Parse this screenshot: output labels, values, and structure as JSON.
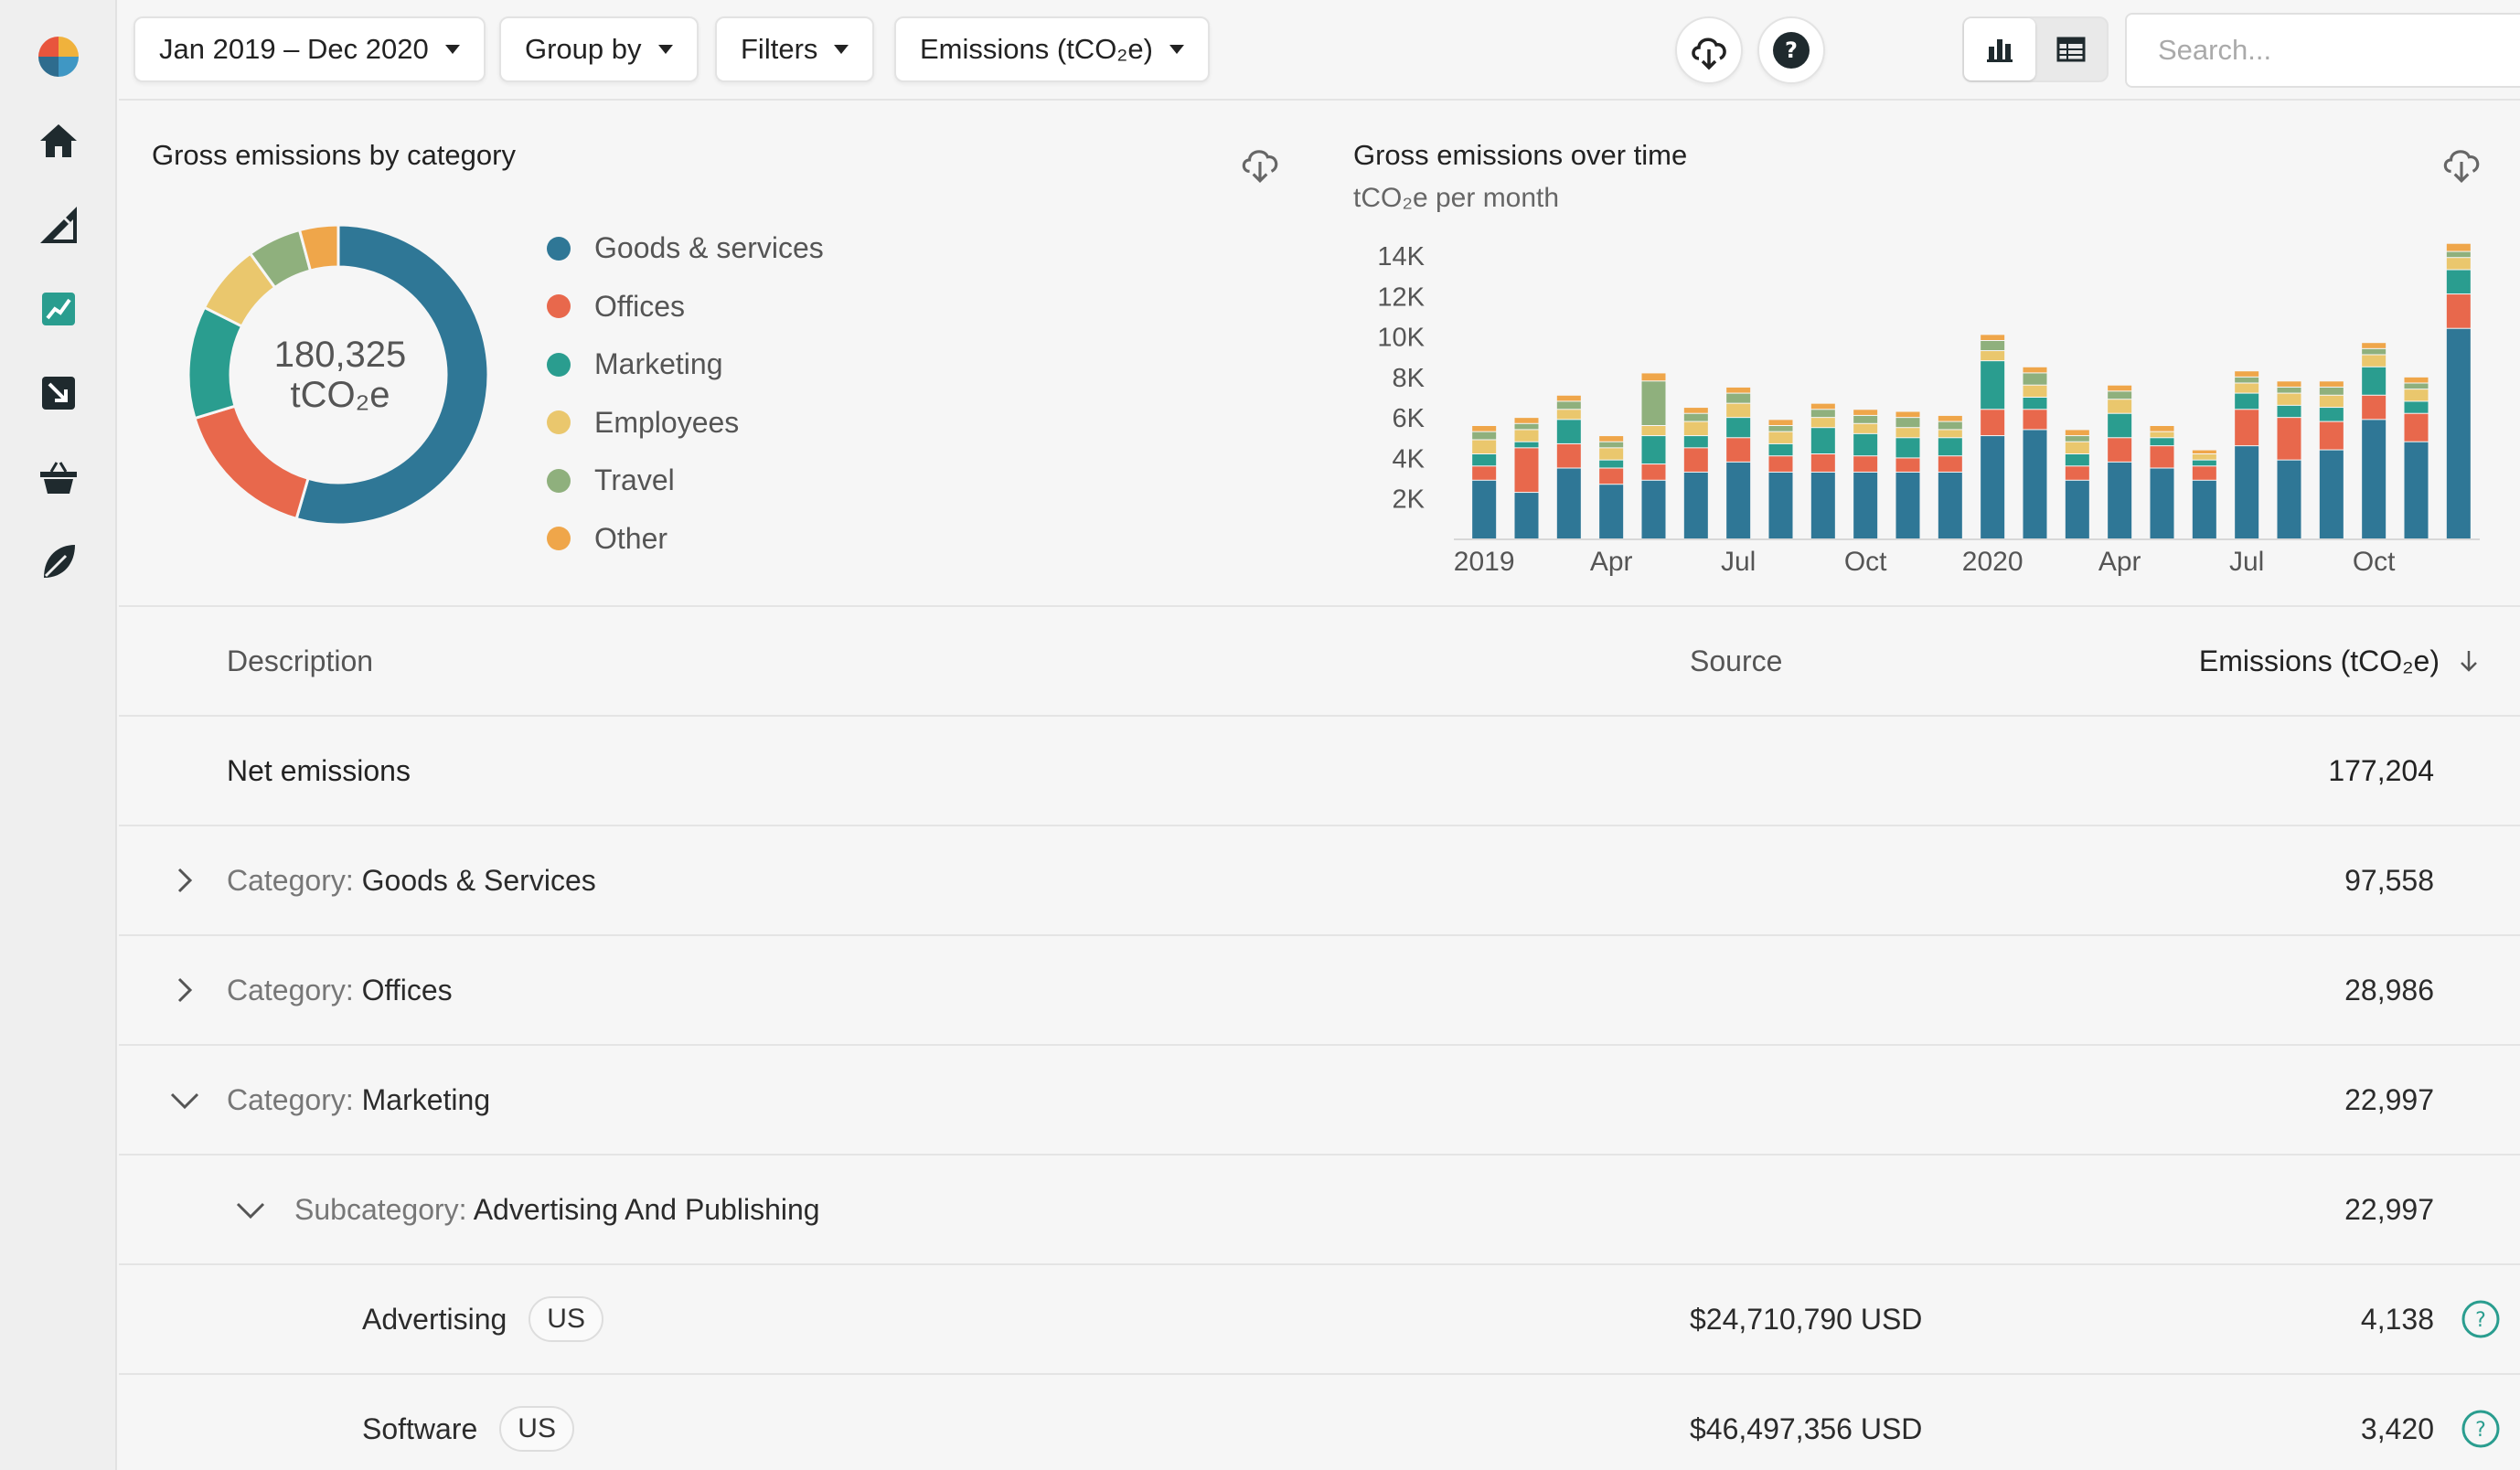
{
  "toolbar": {
    "date_range": "Jan 2019 – Dec 2020",
    "group_by": "Group by",
    "filters": "Filters",
    "metric": "Emissions (tCO₂e)",
    "search_placeholder": "Search..."
  },
  "sidebar": {
    "items": [
      "logo",
      "home",
      "tools",
      "analytics",
      "import",
      "basket",
      "leaf"
    ]
  },
  "donut": {
    "title": "Gross emissions by category",
    "total_value": "180,325",
    "total_unit": "tCO₂e",
    "legend": [
      {
        "label": "Goods & services",
        "color": "#2f7796"
      },
      {
        "label": "Offices",
        "color": "#e8684c"
      },
      {
        "label": "Marketing",
        "color": "#2a9d8f"
      },
      {
        "label": "Employees",
        "color": "#eac76d"
      },
      {
        "label": "Travel",
        "color": "#8fb07d"
      },
      {
        "label": "Other",
        "color": "#efa64a"
      }
    ]
  },
  "chart_data": {
    "type": "bar",
    "stacked": true,
    "title": "Gross emissions over time",
    "subtitle": "tCO₂e per month",
    "xlabel": "",
    "ylabel": "tCO₂e",
    "ylim": [
      0,
      14000
    ],
    "y_ticks": [
      "2K",
      "4K",
      "6K",
      "8K",
      "10K",
      "12K",
      "14K"
    ],
    "x_tick_labels": [
      {
        "index": 0,
        "label": "2019"
      },
      {
        "index": 3,
        "label": "Apr"
      },
      {
        "index": 6,
        "label": "Jul"
      },
      {
        "index": 9,
        "label": "Oct"
      },
      {
        "index": 12,
        "label": "2020"
      },
      {
        "index": 15,
        "label": "Apr"
      },
      {
        "index": 18,
        "label": "Jul"
      },
      {
        "index": 21,
        "label": "Oct"
      }
    ],
    "categories": [
      "Jan 2019",
      "Feb 2019",
      "Mar 2019",
      "Apr 2019",
      "May 2019",
      "Jun 2019",
      "Jul 2019",
      "Aug 2019",
      "Sep 2019",
      "Oct 2019",
      "Nov 2019",
      "Dec 2019",
      "Jan 2020",
      "Feb 2020",
      "Mar 2020",
      "Apr 2020",
      "May 2020",
      "Jun 2020",
      "Jul 2020",
      "Aug 2020",
      "Sep 2020",
      "Oct 2020",
      "Nov 2020",
      "Dec 2020"
    ],
    "series": [
      {
        "name": "Goods & services",
        "color": "#2f7796",
        "values": [
          2900,
          2300,
          3500,
          2700,
          2900,
          3300,
          3800,
          3300,
          3300,
          3300,
          3300,
          3300,
          5100,
          5400,
          2900,
          3800,
          3500,
          2900,
          4600,
          3900,
          4400,
          5900,
          4800,
          10400
        ]
      },
      {
        "name": "Offices",
        "color": "#e8684c",
        "values": [
          700,
          2200,
          1200,
          800,
          800,
          1200,
          1200,
          800,
          900,
          800,
          700,
          800,
          1300,
          1000,
          700,
          1200,
          1100,
          700,
          1800,
          2100,
          1400,
          1200,
          1400,
          1700
        ]
      },
      {
        "name": "Marketing",
        "color": "#2a9d8f",
        "values": [
          600,
          300,
          1200,
          400,
          1400,
          600,
          1000,
          600,
          1300,
          1100,
          1000,
          900,
          2400,
          600,
          600,
          1200,
          400,
          300,
          800,
          600,
          700,
          1400,
          600,
          1200
        ]
      },
      {
        "name": "Employees",
        "color": "#eac76d",
        "values": [
          700,
          600,
          500,
          600,
          500,
          700,
          700,
          600,
          500,
          500,
          500,
          400,
          500,
          600,
          600,
          700,
          300,
          300,
          500,
          600,
          600,
          600,
          600,
          600
        ]
      },
      {
        "name": "Travel",
        "color": "#8fb07d",
        "values": [
          400,
          300,
          400,
          300,
          2200,
          400,
          500,
          300,
          400,
          400,
          500,
          400,
          500,
          600,
          300,
          400,
          0,
          0,
          300,
          300,
          400,
          300,
          300,
          300
        ]
      },
      {
        "name": "Other",
        "color": "#efa64a",
        "values": [
          300,
          300,
          300,
          300,
          400,
          300,
          300,
          300,
          300,
          300,
          300,
          300,
          300,
          300,
          300,
          300,
          300,
          200,
          300,
          300,
          300,
          300,
          300,
          400
        ]
      }
    ]
  },
  "table": {
    "headers": {
      "description": "Description",
      "source": "Source",
      "emissions": "Emissions (tCO₂e)"
    },
    "rows": [
      {
        "type": "total",
        "label": "Net emissions",
        "value": "177,204"
      },
      {
        "type": "category",
        "prefix": "Category:",
        "label": "Goods & Services",
        "value": "97,558",
        "expanded": false
      },
      {
        "type": "category",
        "prefix": "Category:",
        "label": "Offices",
        "value": "28,986",
        "expanded": false
      },
      {
        "type": "category",
        "prefix": "Category:",
        "label": "Marketing",
        "value": "22,997",
        "expanded": true
      },
      {
        "type": "subcategory",
        "prefix": "Subcategory:",
        "label": "Advertising And Publishing",
        "value": "22,997",
        "expanded": true
      },
      {
        "type": "item",
        "label": "Advertising",
        "badge": "US",
        "source": "$24,710,790 USD",
        "value": "4,138"
      },
      {
        "type": "item",
        "label": "Software",
        "badge": "US",
        "source": "$46,497,356 USD",
        "value": "3,420"
      }
    ]
  }
}
